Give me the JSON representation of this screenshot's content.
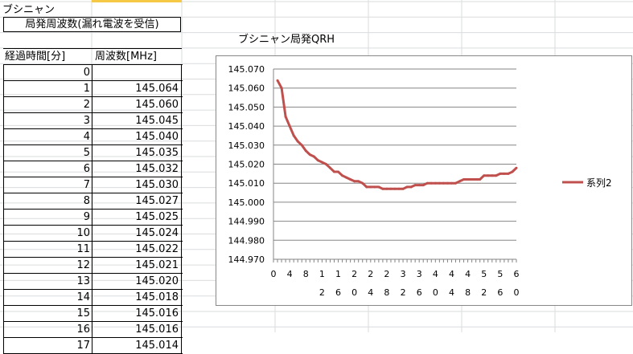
{
  "sheet": {
    "title": "ブシニャン",
    "subtitle": "局発周波数(漏れ電波を受信)"
  },
  "table": {
    "headers": [
      "経過時間[分]",
      "周波数[MHz]"
    ],
    "rows": [
      {
        "t": "0",
        "f": ""
      },
      {
        "t": "1",
        "f": "145.064"
      },
      {
        "t": "2",
        "f": "145.060"
      },
      {
        "t": "3",
        "f": "145.045"
      },
      {
        "t": "4",
        "f": "145.040"
      },
      {
        "t": "5",
        "f": "145.035"
      },
      {
        "t": "6",
        "f": "145.032"
      },
      {
        "t": "7",
        "f": "145.030"
      },
      {
        "t": "8",
        "f": "145.027"
      },
      {
        "t": "9",
        "f": "145.025"
      },
      {
        "t": "10",
        "f": "145.024"
      },
      {
        "t": "11",
        "f": "145.022"
      },
      {
        "t": "12",
        "f": "145.021"
      },
      {
        "t": "13",
        "f": "145.020"
      },
      {
        "t": "14",
        "f": "145.018"
      },
      {
        "t": "15",
        "f": "145.016"
      },
      {
        "t": "16",
        "f": "145.016"
      },
      {
        "t": "17",
        "f": "145.014"
      }
    ]
  },
  "chart_data": {
    "type": "line",
    "title": "ブシニャン局発QRH",
    "xlabel": "",
    "ylabel": "",
    "ylim": [
      144.97,
      145.07
    ],
    "xlim": [
      0,
      60
    ],
    "yticks": [
      "144.970",
      "144.980",
      "144.990",
      "145.000",
      "145.010",
      "145.020",
      "145.030",
      "145.040",
      "145.050",
      "145.060",
      "145.070"
    ],
    "xtick_values": [
      0,
      4,
      8,
      12,
      16,
      20,
      24,
      28,
      32,
      36,
      40,
      44,
      48,
      52,
      56,
      60
    ],
    "xtick_labels": [
      "0",
      "4",
      "8",
      "1\n2",
      "1\n6",
      "2\n0",
      "2\n4",
      "2\n8",
      "3\n2",
      "3\n6",
      "4\n0",
      "4\n4",
      "4\n8",
      "5\n2",
      "5\n6",
      "6\n0"
    ],
    "grid": true,
    "legend": "right",
    "series": [
      {
        "name": "系列2",
        "color": "#c0504d",
        "x": [
          1,
          2,
          3,
          4,
          5,
          6,
          7,
          8,
          9,
          10,
          11,
          12,
          13,
          14,
          15,
          16,
          17,
          18,
          19,
          20,
          21,
          22,
          23,
          24,
          25,
          26,
          27,
          28,
          29,
          30,
          31,
          32,
          33,
          34,
          35,
          36,
          37,
          38,
          39,
          40,
          41,
          42,
          43,
          44,
          45,
          46,
          47,
          48,
          49,
          50,
          51,
          52,
          53,
          54,
          55,
          56,
          57,
          58,
          59,
          60
        ],
        "values": [
          145.064,
          145.06,
          145.045,
          145.04,
          145.035,
          145.032,
          145.03,
          145.027,
          145.025,
          145.024,
          145.022,
          145.021,
          145.02,
          145.018,
          145.016,
          145.016,
          145.014,
          145.013,
          145.012,
          145.011,
          145.011,
          145.01,
          145.008,
          145.008,
          145.008,
          145.008,
          145.007,
          145.007,
          145.007,
          145.007,
          145.007,
          145.007,
          145.008,
          145.008,
          145.009,
          145.009,
          145.009,
          145.01,
          145.01,
          145.01,
          145.01,
          145.01,
          145.01,
          145.01,
          145.01,
          145.011,
          145.012,
          145.012,
          145.012,
          145.012,
          145.012,
          145.014,
          145.014,
          145.014,
          145.014,
          145.015,
          145.015,
          145.015,
          145.016,
          145.018
        ]
      }
    ]
  }
}
